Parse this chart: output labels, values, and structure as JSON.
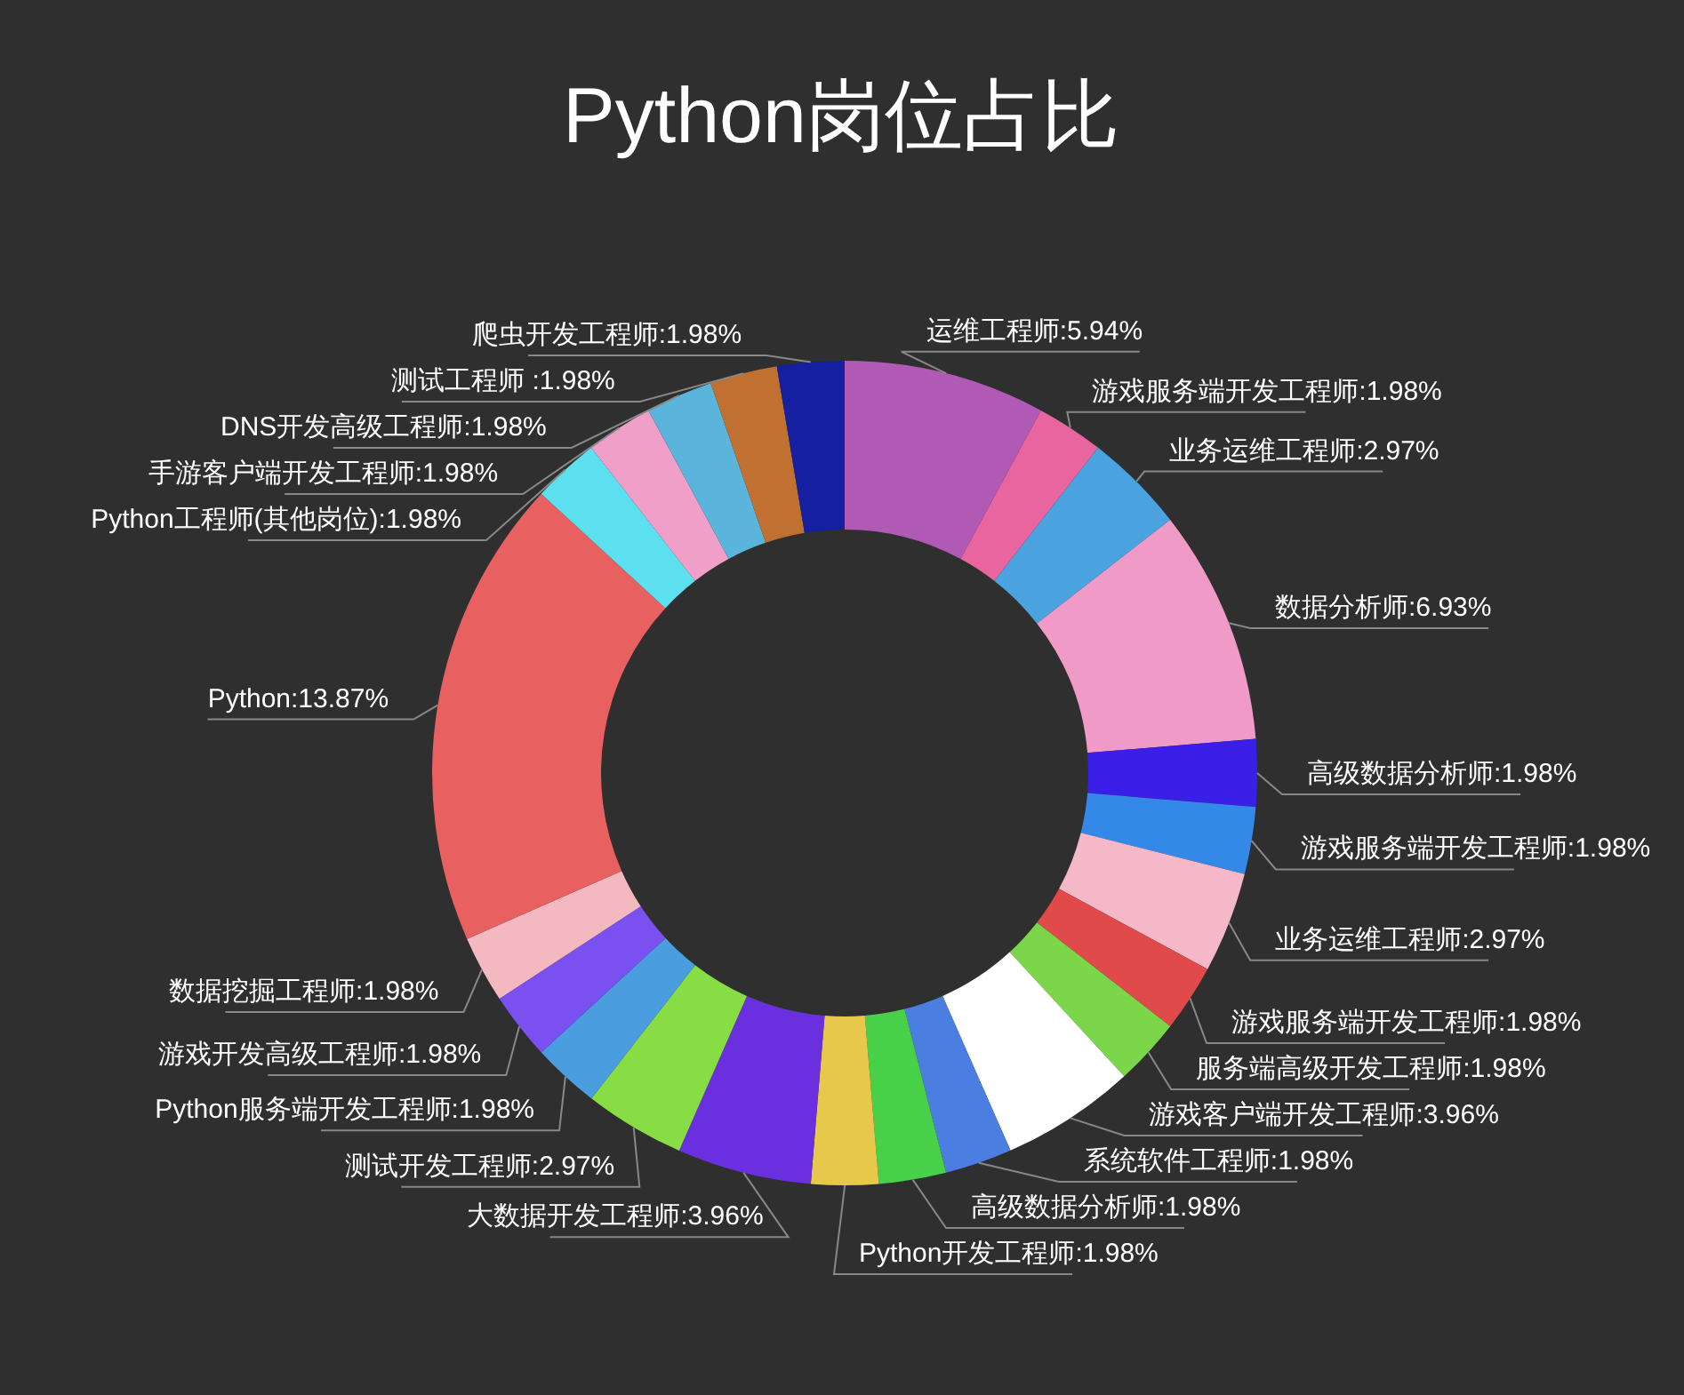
{
  "chart_data": {
    "type": "donut",
    "title": "Python岗位占比",
    "categories": [
      "运维工程师",
      "游戏服务端开发工程师",
      "业务运维工程师",
      "数据分析师",
      "高级数据分析师",
      "游戏服务端开发工程师",
      "业务运维工程师",
      "游戏服务端开发工程师",
      "服务端高级开发工程师",
      "游戏客户端开发工程师",
      "系统软件工程师",
      "高级数据分析师",
      "Python开发工程师",
      "大数据开发工程师",
      "测试开发工程师",
      "Python服务端开发工程师",
      "游戏开发高级工程师",
      "数据挖掘工程师",
      "Python",
      "Python工程师(其他岗位)",
      "手游客户端开发工程师",
      "DNS开发高级工程师",
      "测试工程师 ",
      "爬虫开发工程师"
    ],
    "values": [
      5.94,
      1.98,
      2.97,
      6.93,
      1.98,
      1.98,
      2.97,
      1.98,
      1.98,
      3.96,
      1.98,
      1.98,
      1.98,
      3.96,
      2.97,
      1.98,
      1.98,
      1.98,
      13.87,
      1.98,
      1.98,
      1.98,
      1.98,
      1.98
    ],
    "value_labels": [
      "5.94%",
      "1.98%",
      "2.97%",
      "6.93%",
      "1.98%",
      "1.98%",
      "2.97%",
      "1.98%",
      "1.98%",
      "3.96%",
      "1.98%",
      "1.98%",
      "1.98%",
      "3.96%",
      "2.97%",
      "1.98%",
      "1.98%",
      "1.98%",
      "13.87%",
      "1.98%",
      "1.98%",
      "1.98%",
      "1.98%",
      "1.98%"
    ],
    "colors": [
      "#b05ab5",
      "#e8659f",
      "#4aa3df",
      "#f09ac8",
      "#3b1ee8",
      "#3388e8",
      "#f4b8c8",
      "#e04a4a",
      "#7cd64a",
      "#ffffff",
      "#4a7ee0",
      "#49d049",
      "#e8c84a",
      "#6a30e0",
      "#88dd44",
      "#4a9ee0",
      "#7a50f0",
      "#f4b8c0",
      "#e86060",
      "#5ce0f0",
      "#f0a0c8",
      "#5ab4dc",
      "#c07030",
      "#1420a0"
    ]
  }
}
